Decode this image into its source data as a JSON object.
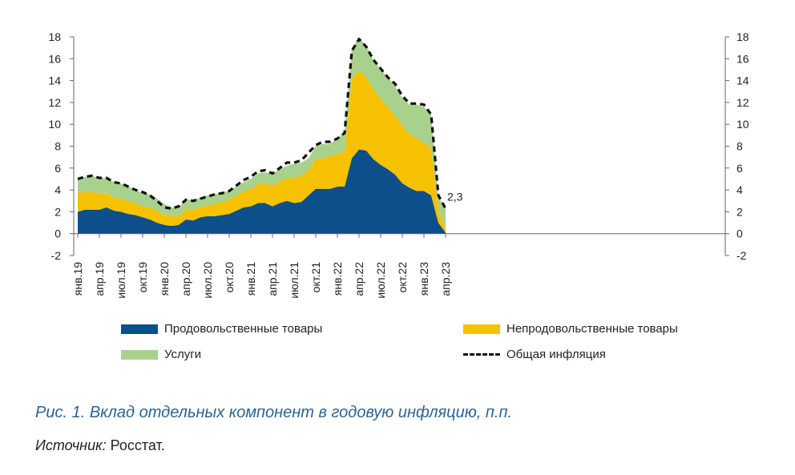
{
  "chart_data": {
    "type": "area",
    "stacked": true,
    "x": [
      "янв.19",
      "фев.19",
      "мар.19",
      "апр.19",
      "май.19",
      "июн.19",
      "июл.19",
      "авг.19",
      "сен.19",
      "окт.19",
      "ноя.19",
      "дек.19",
      "янв.20",
      "фев.20",
      "мар.20",
      "апр.20",
      "май.20",
      "июн.20",
      "июл.20",
      "авг.20",
      "сен.20",
      "окт.20",
      "ноя.20",
      "дек.20",
      "янв.21",
      "фев.21",
      "мар.21",
      "апр.21",
      "май.21",
      "июн.21",
      "июл.21",
      "авг.21",
      "сен.21",
      "окт.21",
      "ноя.21",
      "дек.21",
      "янв.22",
      "фев.22",
      "мар.22",
      "апр.22",
      "май.22",
      "июн.22",
      "июл.22",
      "авг.22",
      "сен.22",
      "окт.22",
      "ноя.22",
      "дек.22",
      "янв.23",
      "фев.23",
      "мар.23",
      "апр.23"
    ],
    "x_tick_labels": [
      "янв.19",
      "апр.19",
      "июл.19",
      "окт.19",
      "янв.20",
      "апр.20",
      "июл.20",
      "окт.20",
      "янв.21",
      "апр.21",
      "июл.21",
      "окт.21",
      "янв.22",
      "апр.22",
      "июл.22",
      "окт.22",
      "янв.23",
      "апр.23"
    ],
    "series": [
      {
        "name": "Продовольственные товары",
        "color": "#0d4f8b",
        "values": [
          2.0,
          2.2,
          2.2,
          2.2,
          2.4,
          2.1,
          2.0,
          1.8,
          1.7,
          1.5,
          1.3,
          1.0,
          0.8,
          0.7,
          0.8,
          1.3,
          1.2,
          1.5,
          1.6,
          1.6,
          1.7,
          1.8,
          2.1,
          2.4,
          2.5,
          2.8,
          2.8,
          2.5,
          2.8,
          3.0,
          2.8,
          2.9,
          3.5,
          4.1,
          4.1,
          4.1,
          4.3,
          4.3,
          6.9,
          7.7,
          7.6,
          6.8,
          6.3,
          5.9,
          5.4,
          4.6,
          4.2,
          3.9,
          3.9,
          3.5,
          1.0,
          0.1
        ]
      },
      {
        "name": "Непродовольственные товары",
        "color": "#f5c100",
        "values": [
          1.7,
          1.6,
          1.6,
          1.5,
          1.3,
          1.2,
          1.2,
          1.2,
          1.1,
          1.0,
          1.1,
          1.1,
          0.9,
          0.9,
          0.8,
          0.9,
          1.0,
          0.9,
          1.0,
          1.1,
          1.2,
          1.3,
          1.4,
          1.5,
          1.6,
          1.7,
          1.8,
          1.9,
          2.0,
          2.1,
          2.3,
          2.4,
          2.3,
          2.7,
          2.8,
          3.0,
          3.0,
          3.2,
          7.3,
          7.2,
          6.7,
          6.4,
          6.0,
          5.7,
          5.4,
          5.3,
          4.9,
          4.8,
          4.4,
          4.3,
          1.2,
          0.3
        ]
      },
      {
        "name": "Услуги",
        "color": "#a9d18e",
        "values": [
          1.3,
          1.4,
          1.5,
          1.4,
          1.4,
          1.4,
          1.4,
          1.3,
          1.2,
          1.2,
          1.2,
          1.1,
          1.0,
          0.8,
          0.8,
          0.9,
          0.9,
          0.9,
          0.9,
          0.9,
          0.9,
          0.8,
          0.8,
          0.8,
          0.9,
          1.0,
          1.0,
          1.1,
          1.1,
          1.1,
          1.3,
          1.2,
          1.1,
          1.2,
          1.3,
          1.1,
          1.4,
          1.9,
          2.8,
          3.0,
          2.9,
          2.7,
          2.7,
          2.7,
          2.7,
          2.5,
          2.7,
          3.1,
          3.3,
          3.1,
          1.2,
          1.9
        ]
      }
    ],
    "total": {
      "name": "Общая инфляция",
      "color": "#111111",
      "values": [
        5.0,
        5.2,
        5.3,
        5.1,
        5.1,
        4.7,
        4.6,
        4.3,
        4.0,
        3.8,
        3.5,
        3.0,
        2.4,
        2.3,
        2.5,
        3.1,
        3.0,
        3.2,
        3.4,
        3.6,
        3.7,
        3.9,
        4.4,
        4.9,
        5.2,
        5.7,
        5.8,
        5.5,
        6.0,
        6.5,
        6.5,
        6.7,
        7.4,
        8.1,
        8.4,
        8.4,
        8.7,
        9.2,
        16.7,
        17.8,
        17.1,
        15.9,
        15.1,
        14.3,
        13.7,
        12.6,
        11.9,
        11.9,
        11.8,
        10.9,
        3.5,
        2.3
      ]
    },
    "annotations": [
      {
        "text": "2,3",
        "index": 51,
        "value": 2.3
      }
    ],
    "ylim": [
      -2,
      18
    ],
    "y_ticks": [
      -2,
      0,
      2,
      4,
      6,
      8,
      10,
      12,
      14,
      16,
      18
    ],
    "y_right_axis": true,
    "grid": false,
    "legend_position": "bottom"
  },
  "legend": {
    "food": "Продовольственные товары",
    "nonfood": "Непродовольственные товары",
    "services": "Услуги",
    "total": "Общая инфляция"
  },
  "caption": "Рис. 1. Вклад отдельных компонент в годовую инфляцию, п.п.",
  "source": {
    "label": "Источник:",
    "value": " Росстат."
  }
}
